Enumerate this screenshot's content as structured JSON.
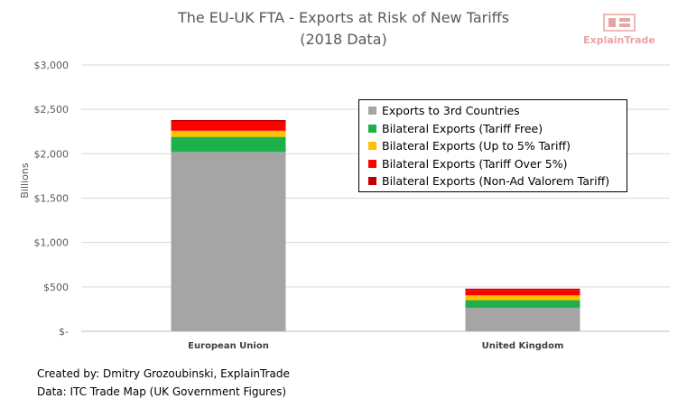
{
  "chart_data": {
    "type": "bar",
    "stacked": true,
    "title": "The EU-UK FTA - Exports at Risk of New Tariffs",
    "subtitle": "(2018 Data)",
    "xlabel": "",
    "ylabel": "Billions",
    "ylim": [
      0,
      3000
    ],
    "yticks": [
      0,
      500,
      1000,
      1500,
      2000,
      2500,
      3000
    ],
    "ytick_labels": [
      "$-",
      "$500",
      "$1,000",
      "$1,500",
      "$2,000",
      "$2,500",
      "$3,000"
    ],
    "grid": true,
    "legend_position": "top-right",
    "categories": [
      "European Union",
      "United Kingdom"
    ],
    "series": [
      {
        "name": "Exports to 3rd Countries",
        "color": "#a5a5a5",
        "values": [
          2020,
          265
        ]
      },
      {
        "name": "Bilateral Exports (Tariff Free)",
        "color": "#1eb04d",
        "values": [
          170,
          85
        ]
      },
      {
        "name": "Bilateral Exports (Up to 5% Tariff)",
        "color": "#ffc000",
        "values": [
          70,
          55
        ]
      },
      {
        "name": "Bilateral Exports (Tariff Over 5%)",
        "color": "#ff0000",
        "values": [
          100,
          60
        ]
      },
      {
        "name": "Bilateral Exports (Non-Ad Valorem Tariff)",
        "color": "#c00000",
        "values": [
          20,
          15
        ]
      }
    ]
  },
  "logo": {
    "text": "ExplainTrade",
    "color": "#e8a4a4"
  },
  "footer": {
    "line1": "Created by: Dmitry Grozoubinski, ExplainTrade",
    "line2": "Data: ITC Trade Map (UK Government Figures)"
  }
}
